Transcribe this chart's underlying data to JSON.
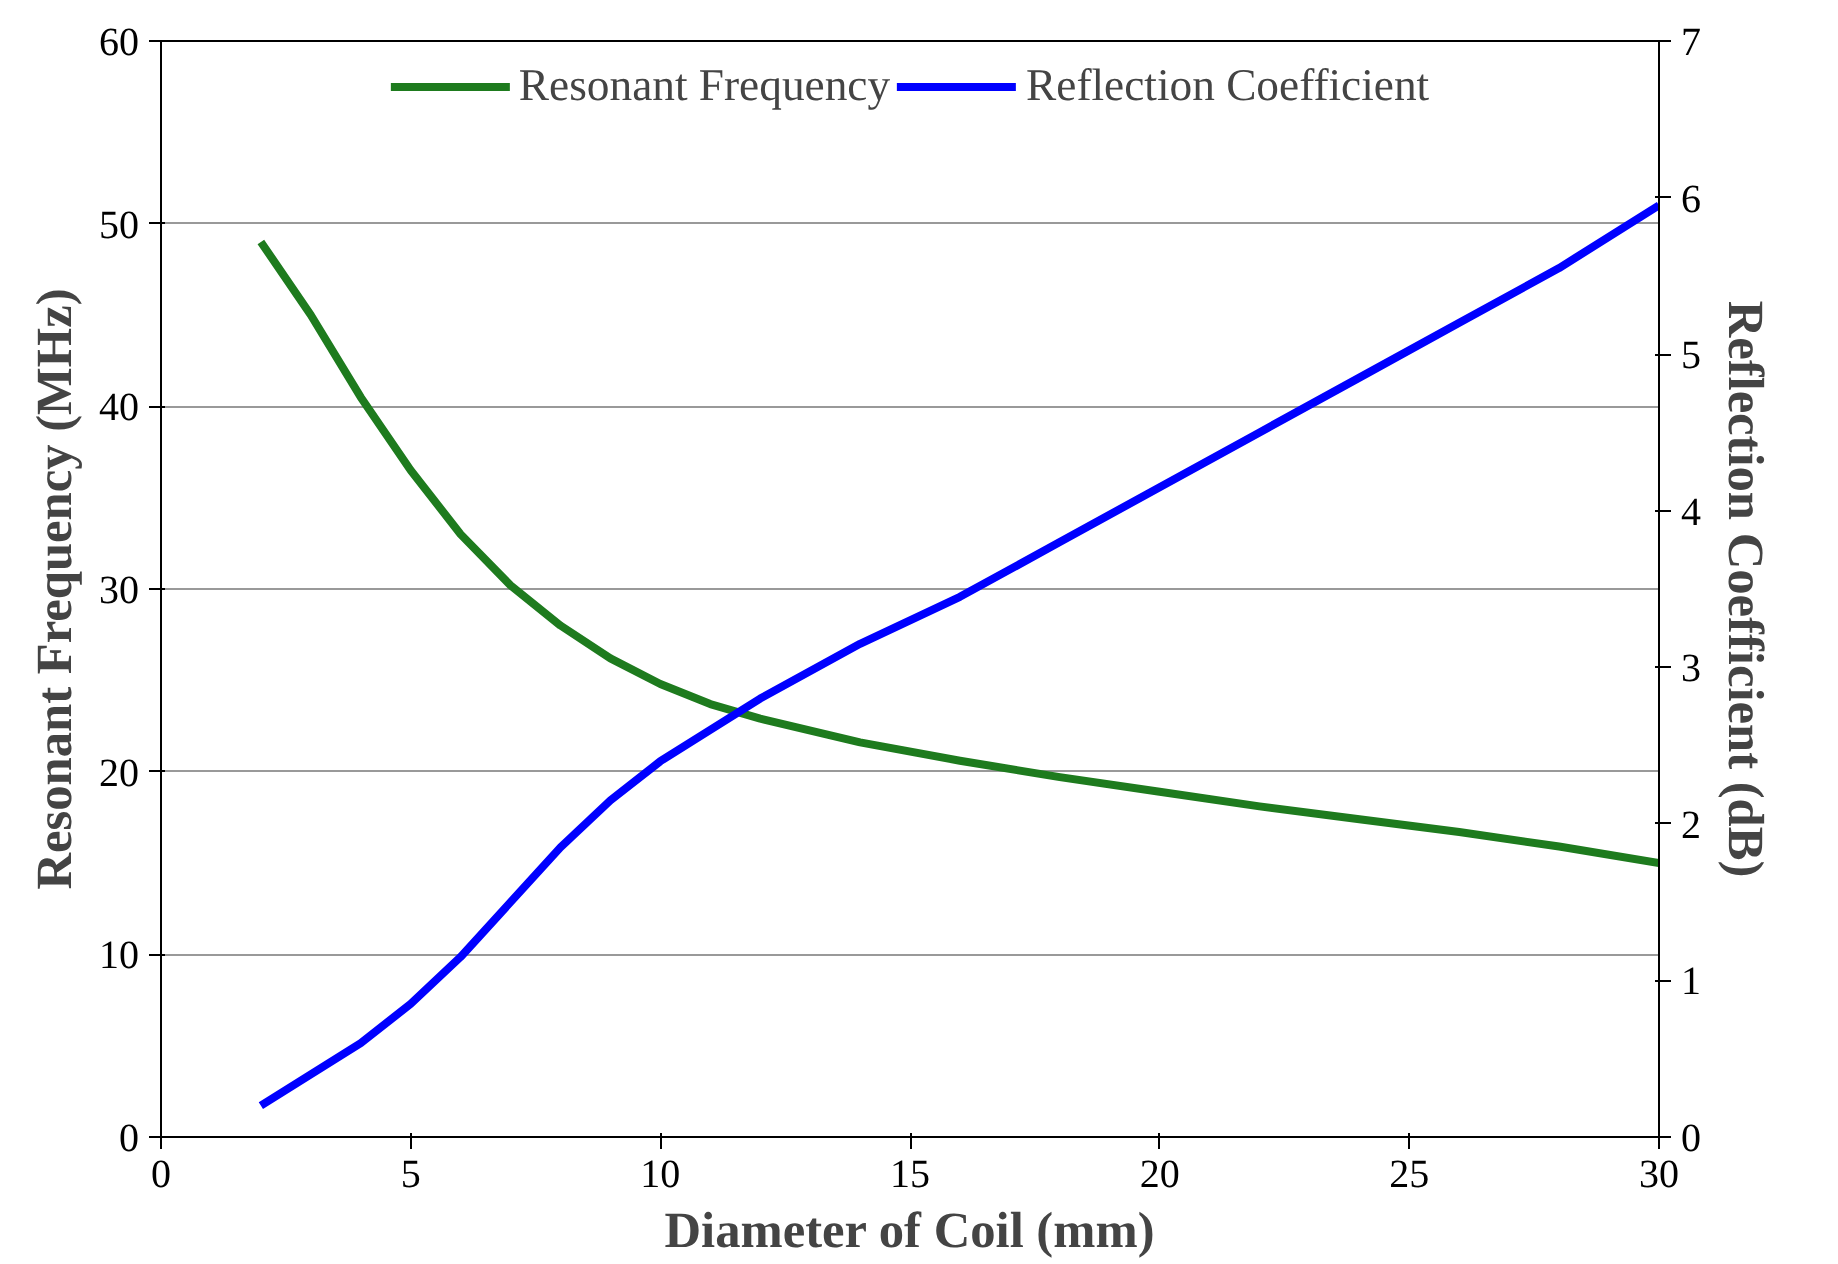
{
  "chart_data": {
    "type": "line",
    "xlabel": "Diameter of Coil (mm)",
    "ylabel": "Resonant Frequency (MHz)",
    "y2label": "Reflection Coefficient (dB)",
    "x": [
      2,
      3,
      4,
      5,
      6,
      7,
      8,
      9,
      10,
      11,
      12,
      14,
      16,
      18,
      20,
      22,
      24,
      26,
      28,
      30
    ],
    "series": [
      {
        "name": "Resonant Frequency",
        "color": "#1e7b1e",
        "values": [
          49,
          45,
          40.5,
          36.5,
          33,
          30.2,
          28,
          26.2,
          24.8,
          23.7,
          22.9,
          21.6,
          20.6,
          19.7,
          18.9,
          18.1,
          17.4,
          16.7,
          15.9,
          15
        ]
      },
      {
        "name": "Reflection Coefficient",
        "color": "#0000ff",
        "axis": "y2",
        "values": [
          0.2,
          0.4,
          0.6,
          0.85,
          1.15,
          1.5,
          1.85,
          2.15,
          2.4,
          2.6,
          2.8,
          3.15,
          3.45,
          3.8,
          4.15,
          4.5,
          4.85,
          5.2,
          5.55,
          5.95
        ]
      }
    ],
    "xlim": [
      0,
      30
    ],
    "xticks": [
      0,
      5,
      10,
      15,
      20,
      25,
      30
    ],
    "ylim": [
      0,
      60
    ],
    "yticks": [
      0,
      10,
      20,
      30,
      40,
      50,
      60
    ],
    "y2lim": [
      0,
      7
    ],
    "y2ticks": [
      0,
      1,
      2,
      3,
      4,
      5,
      6,
      7
    ],
    "grid": "y",
    "legend": "top",
    "marker": "none",
    "line_style": "solid"
  }
}
